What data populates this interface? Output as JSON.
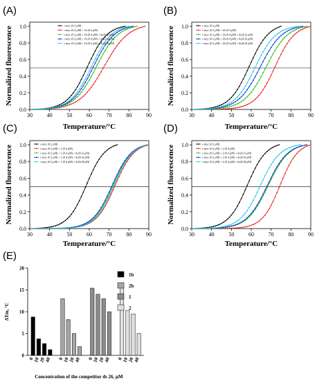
{
  "chart_data": [
    {
      "type": "line",
      "panel_label": "(A)",
      "xlabel": "Temperature/°C",
      "ylabel": "Normalized fluorescence",
      "xlim": [
        30,
        90
      ],
      "ylim": [
        0,
        1.05
      ],
      "xticks": [
        "30",
        "40",
        "50",
        "60",
        "70",
        "80",
        "90"
      ],
      "yticks": [
        "0.0",
        "0.2",
        "0.4",
        "0.6",
        "0.8",
        "1.0"
      ],
      "reference_line_y": 0.5,
      "legend_position": "top-right",
      "series": [
        {
          "name": "c-myc (0.2 μM)",
          "color": "#000000",
          "tm": 59.0,
          "width": 5.0,
          "start": 30,
          "end": 78
        },
        {
          "name": "c-myc (0.2 μM) + 1b (0.4 μM)",
          "color": "#e8231f",
          "tm": 67.5,
          "width": 6.2,
          "start": 30,
          "end": 88
        },
        {
          "name": "c-myc (0.2 μM) + 1b (0.4 μM) + ds26 (2 μM)",
          "color": "#21c21a",
          "tm": 63.5,
          "width": 5.5,
          "start": 30,
          "end": 84
        },
        {
          "name": "c-myc (0.2 μM) + 1b (0.4 μM) + ds26 (4 μM)",
          "color": "#1f2fd6",
          "tm": 62.0,
          "width": 5.3,
          "start": 30,
          "end": 82
        },
        {
          "name": "c-myc (0.2 μM) + 1b (0.4 μM) + ds26 (8 μM)",
          "color": "#20c8e8",
          "tm": 61.0,
          "width": 5.2,
          "start": 30,
          "end": 80
        }
      ]
    },
    {
      "type": "line",
      "panel_label": "(B)",
      "xlabel": "Temperature/°C",
      "ylabel": "Normalized fluorescence",
      "xlim": [
        30,
        90
      ],
      "ylim": [
        0,
        1.05
      ],
      "xticks": [
        "30",
        "40",
        "50",
        "60",
        "70",
        "80",
        "90"
      ],
      "yticks": [
        "0.0",
        "0.2",
        "0.4",
        "0.6",
        "0.8",
        "1.0"
      ],
      "reference_line_y": 0.5,
      "legend_position": "top-left",
      "series": [
        {
          "name": "c-myc (0.2 μM)",
          "color": "#000000",
          "tm": 59.0,
          "width": 5.0,
          "start": 30,
          "end": 75
        },
        {
          "name": "c-myc (0.2 μM) + 2b (0.4 μM)",
          "color": "#e8231f",
          "tm": 72.0,
          "width": 5.0,
          "start": 30,
          "end": 90
        },
        {
          "name": "c-myc (0.2 μM) + 2b (0.4 μM) + ds26 (2 μM)",
          "color": "#21c21a",
          "tm": 67.5,
          "width": 5.5,
          "start": 30,
          "end": 88
        },
        {
          "name": "c-myc (0.2 μM) + 2b (0.4 μM) + ds26 (4 μM)",
          "color": "#1f2fd6",
          "tm": 64.5,
          "width": 5.5,
          "start": 30,
          "end": 86
        },
        {
          "name": "c-myc (0.2 μM) + 2b (0.4 μM) + ds26 (8 μM)",
          "color": "#20c8e8",
          "tm": 62.0,
          "width": 5.2,
          "start": 30,
          "end": 84
        }
      ]
    },
    {
      "type": "line",
      "panel_label": "(C)",
      "xlabel": "Temperature/°C",
      "ylabel": "Normalized fluorescence",
      "xlim": [
        30,
        90
      ],
      "ylim": [
        0,
        1.05
      ],
      "xticks": [
        "30",
        "40",
        "50",
        "60",
        "70",
        "80",
        "90"
      ],
      "yticks": [
        "0.0",
        "0.2",
        "0.4",
        "0.6",
        "0.8",
        "1.0"
      ],
      "reference_line_y": 0.5,
      "legend_position": "top-left",
      "series": [
        {
          "name": "c-myc (0.2 μM)",
          "color": "#000000",
          "tm": 58.5,
          "width": 4.7,
          "start": 30,
          "end": 74
        },
        {
          "name": "c-myc (0.2 μM) + 1 (0.4 μM)",
          "color": "#e8231f",
          "tm": 73.0,
          "width": 4.8,
          "start": 30,
          "end": 90
        },
        {
          "name": "c-myc (0.2 μM) + 1 (0.4 μM) + ds26 (2 μM)",
          "color": "#21c21a",
          "tm": 72.0,
          "width": 4.9,
          "start": 30,
          "end": 89
        },
        {
          "name": "c-myc (0.2 μM) + 1 (0.4 μM) + ds26 (4 μM)",
          "color": "#1f2fd6",
          "tm": 71.5,
          "width": 4.9,
          "start": 30,
          "end": 89
        },
        {
          "name": "c-myc (0.2 μM) + 1 (0.4 μM) + ds26 (8 μM)",
          "color": "#20c8e8",
          "tm": 72.5,
          "width": 4.8,
          "start": 30,
          "end": 89
        }
      ]
    },
    {
      "type": "line",
      "panel_label": "(D)",
      "xlabel": "Temperature/°C",
      "ylabel": "Normalized fluorescence",
      "xlim": [
        30,
        90
      ],
      "ylim": [
        0,
        1.05
      ],
      "xticks": [
        "30",
        "40",
        "50",
        "60",
        "70",
        "80",
        "90"
      ],
      "yticks": [
        "0.0",
        "0.2",
        "0.4",
        "0.6",
        "0.8",
        "1.0"
      ],
      "reference_line_y": 0.5,
      "legend_position": "top-left",
      "series": [
        {
          "name": "c-myc (0.2 μM)",
          "color": "#000000",
          "tm": 58.0,
          "width": 4.8,
          "start": 30,
          "end": 74
        },
        {
          "name": "c-myc (0.2 μM) + 2 (0.4 μM)",
          "color": "#e8231f",
          "tm": 74.5,
          "width": 4.5,
          "start": 30,
          "end": 90
        },
        {
          "name": "c-myc (0.2 μM) + 2 (0.4 μM) + ds26 (2 μM)",
          "color": "#21c21a",
          "tm": 68.5,
          "width": 5.2,
          "start": 30,
          "end": 88
        },
        {
          "name": "c-myc (0.2 μM) + 2 (0.4 μM) + ds26 (4 μM)",
          "color": "#1f2fd6",
          "tm": 68.0,
          "width": 5.2,
          "start": 30,
          "end": 88
        },
        {
          "name": "c-myc (0.2 μM) + 2 (0.4 μM) + ds26 (8 μM)",
          "color": "#20c8e8",
          "tm": 64.5,
          "width": 5.0,
          "start": 30,
          "end": 85
        }
      ]
    },
    {
      "type": "bar",
      "panel_label": "(E)",
      "xlabel": "Concentration of the competitor ds 26, μM",
      "ylabel": "ΔTm, °C",
      "ylim": [
        0,
        20
      ],
      "yticks": [
        "0",
        "5",
        "10",
        "15",
        "20"
      ],
      "categories": [
        "0",
        "10",
        "20",
        "40"
      ],
      "legend_position": "top-right",
      "series": [
        {
          "name": "1b",
          "color": "#000000",
          "values": [
            8.8,
            3.8,
            2.7,
            1.3
          ]
        },
        {
          "name": "2b",
          "color": "#a6a6a6",
          "values": [
            13.0,
            8.2,
            5.0,
            2.0
          ]
        },
        {
          "name": "1",
          "color": "#8c8c8c",
          "values": [
            15.4,
            14.0,
            13.0,
            10.0
          ]
        },
        {
          "name": "2",
          "color": "#e0e0e0",
          "values": [
            16.5,
            10.3,
            9.5,
            5.0
          ]
        }
      ]
    }
  ]
}
